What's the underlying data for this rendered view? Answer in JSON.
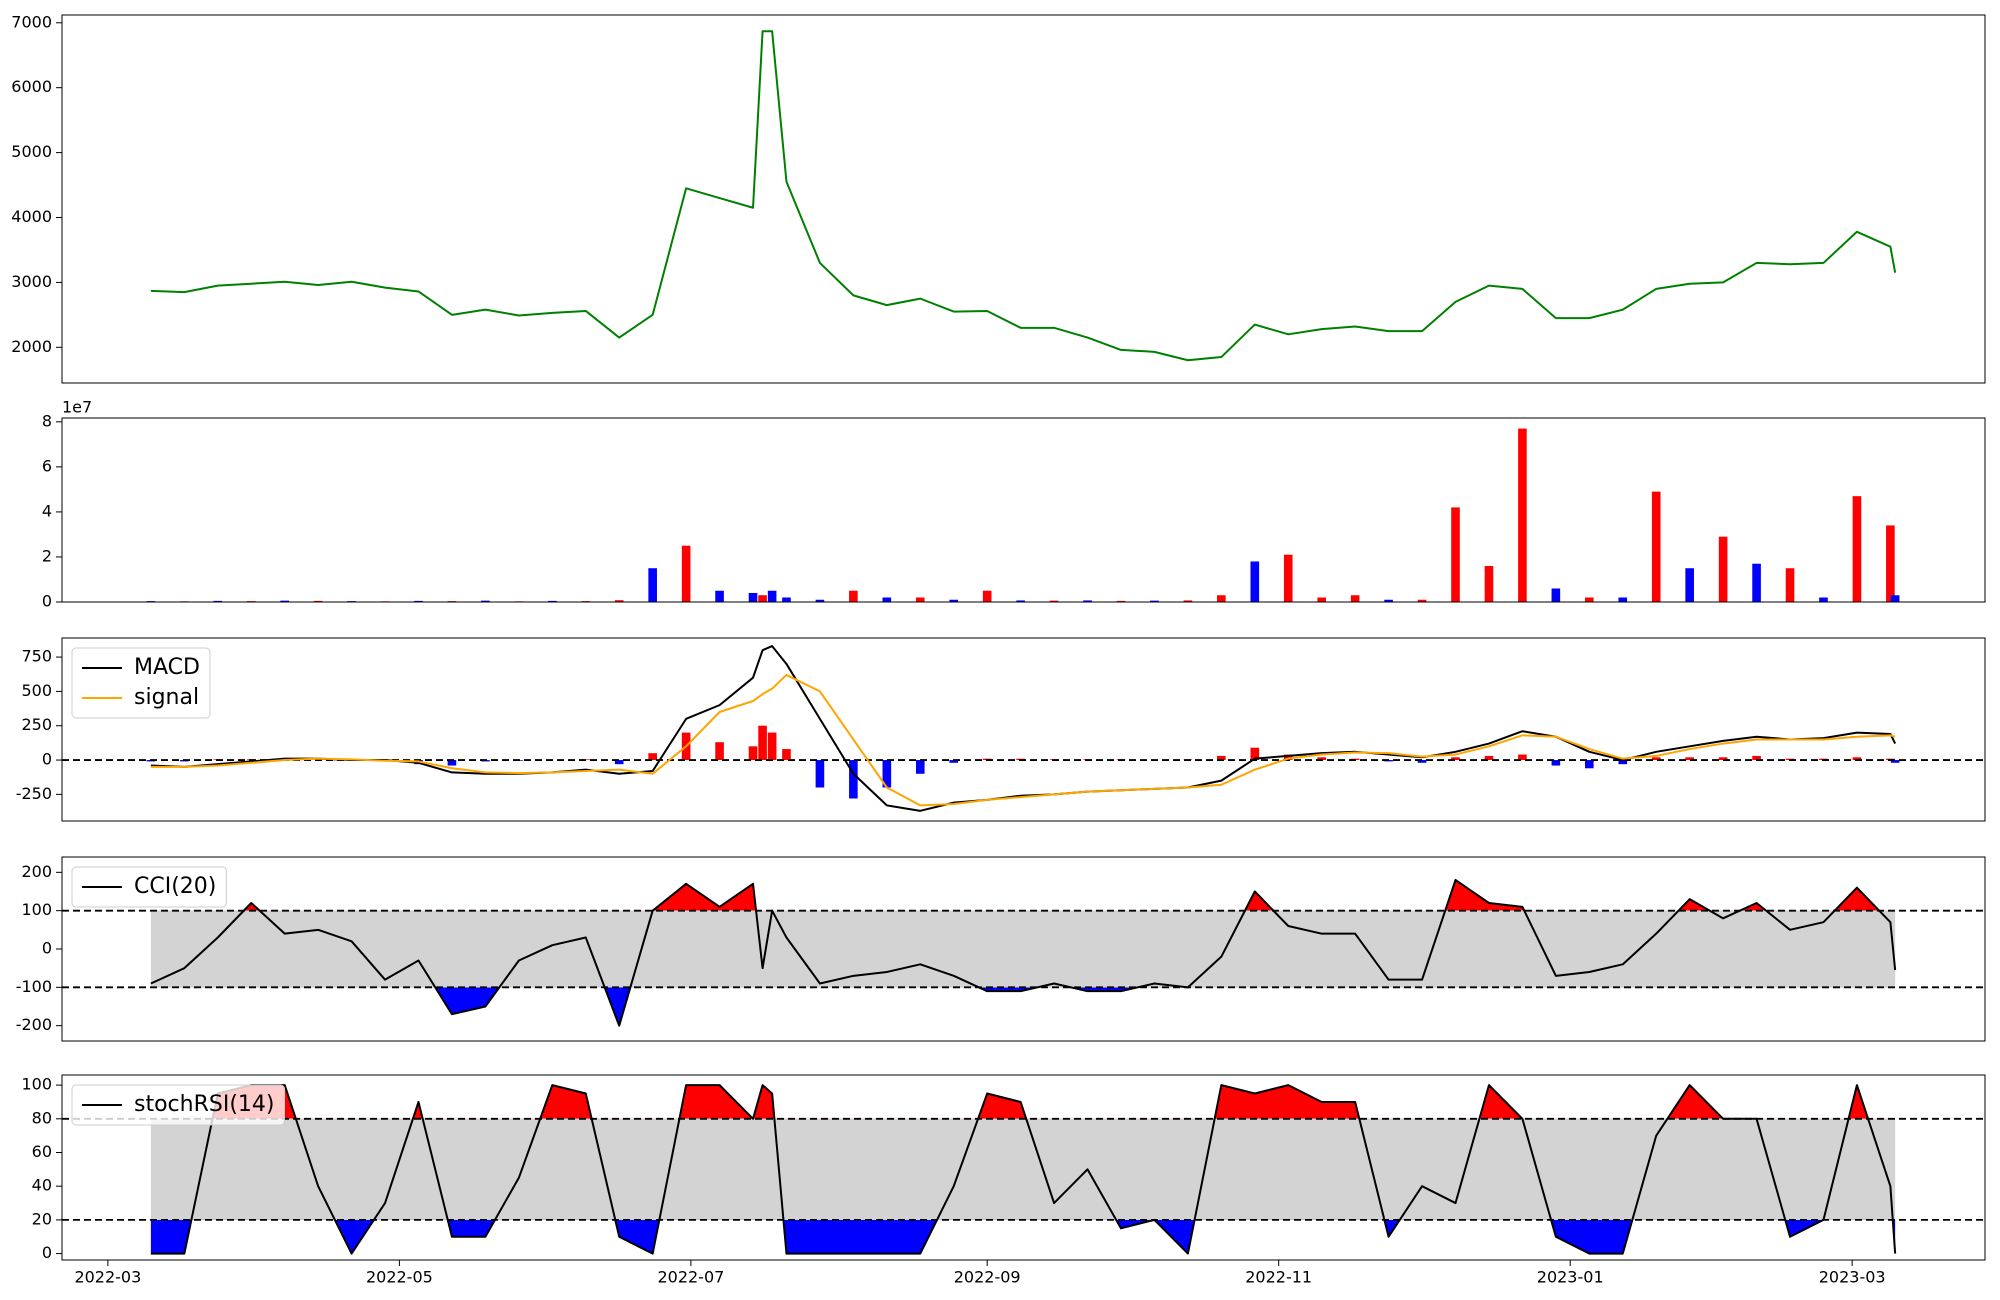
{
  "chart_data": [
    {
      "type": "line",
      "color": "green",
      "x": [
        9,
        16,
        23,
        30,
        37,
        44,
        51,
        58,
        65,
        72,
        79,
        86,
        93,
        100,
        107,
        114,
        121,
        128,
        135,
        137,
        139,
        142,
        149,
        156,
        163,
        170,
        177,
        184,
        191,
        198,
        205,
        212,
        219,
        226,
        233,
        240,
        247,
        254,
        261,
        268,
        275,
        282,
        289,
        296,
        303,
        310,
        317,
        324,
        331,
        338,
        345,
        352,
        359,
        366,
        373,
        374
      ],
      "values": [
        2870,
        2850,
        2950,
        2980,
        3010,
        2960,
        3010,
        2920,
        2860,
        2500,
        2580,
        2490,
        2530,
        2560,
        2150,
        2500,
        4450,
        4300,
        4150,
        6870,
        6870,
        4550,
        3300,
        2800,
        2650,
        2750,
        2550,
        2560,
        2300,
        2300,
        2150,
        1960,
        1930,
        1800,
        1850,
        2350,
        2200,
        2280,
        2320,
        2250,
        2250,
        2700,
        2950,
        2900,
        2450,
        2450,
        2580,
        2900,
        2980,
        3000,
        3300,
        3280,
        3300,
        3780,
        3550,
        3150
      ],
      "xlim": [
        -9.6,
        392.8
      ],
      "ylim": [
        1450,
        7120
      ],
      "yticks": [
        2000,
        3000,
        4000,
        5000,
        6000,
        7000
      ]
    },
    {
      "type": "bar",
      "y_offset_label": "1e7",
      "x": [
        9,
        16,
        23,
        30,
        37,
        44,
        51,
        58,
        65,
        72,
        79,
        86,
        93,
        100,
        107,
        114,
        121,
        128,
        135,
        137,
        139,
        142,
        149,
        156,
        163,
        170,
        177,
        184,
        191,
        198,
        205,
        212,
        219,
        226,
        233,
        240,
        247,
        254,
        261,
        268,
        275,
        282,
        289,
        296,
        303,
        310,
        317,
        324,
        331,
        338,
        345,
        352,
        359,
        366,
        373,
        374
      ],
      "values": [
        400000,
        300000,
        500000,
        400000,
        600000,
        500000,
        400000,
        300000,
        500000,
        400000,
        600000,
        300000,
        500000,
        400000,
        800000,
        15000000,
        25000000,
        5000000,
        4000000,
        3000000,
        5000000,
        2000000,
        1000000,
        5000000,
        2000000,
        2000000,
        1000000,
        5000000,
        700000,
        600000,
        700000,
        500000,
        600000,
        700000,
        3000000,
        18000000,
        21000000,
        2000000,
        3000000,
        1000000,
        1000000,
        42000000,
        16000000,
        77000000,
        6000000,
        2000000,
        2000000,
        49000000,
        15000000,
        29000000,
        17000000,
        15000000,
        2000000,
        47000000,
        34000000,
        3000000
      ],
      "colors": [
        "blue",
        "red",
        "blue",
        "red",
        "blue",
        "red",
        "blue",
        "red",
        "blue",
        "red",
        "blue",
        "red",
        "blue",
        "red",
        "red",
        "blue",
        "red",
        "blue",
        "blue",
        "red",
        "blue",
        "blue",
        "blue",
        "red",
        "blue",
        "red",
        "blue",
        "red",
        "blue",
        "red",
        "blue",
        "red",
        "blue",
        "red",
        "red",
        "blue",
        "red",
        "red",
        "red",
        "blue",
        "red",
        "red",
        "red",
        "red",
        "blue",
        "red",
        "blue",
        "red",
        "blue",
        "red",
        "blue",
        "red",
        "blue",
        "red",
        "red",
        "blue"
      ],
      "xlim": [
        -9.6,
        392.8
      ],
      "ylim": [
        0,
        81700000
      ],
      "yticks": [
        0,
        {
          "value": 20000000,
          "label": "2"
        },
        {
          "value": 40000000,
          "label": "4"
        },
        {
          "value": 60000000,
          "label": "6"
        },
        {
          "value": 80000000,
          "label": "8"
        }
      ]
    },
    {
      "type": "macd",
      "legend": "upper left",
      "hlines": [
        0
      ],
      "x": [
        9,
        16,
        23,
        30,
        37,
        44,
        51,
        58,
        65,
        72,
        79,
        86,
        93,
        100,
        107,
        114,
        121,
        128,
        135,
        137,
        139,
        142,
        149,
        156,
        163,
        170,
        177,
        184,
        191,
        198,
        205,
        212,
        219,
        226,
        233,
        240,
        247,
        254,
        261,
        268,
        275,
        282,
        289,
        296,
        303,
        310,
        317,
        324,
        331,
        338,
        345,
        352,
        359,
        366,
        373,
        374
      ],
      "series": [
        {
          "name": "MACD",
          "color": "black",
          "values": [
            -40,
            -50,
            -30,
            -10,
            10,
            10,
            0,
            0,
            -20,
            -90,
            -100,
            -100,
            -90,
            -70,
            -100,
            -80,
            300,
            400,
            600,
            800,
            830,
            700,
            300,
            -100,
            -330,
            -370,
            -310,
            -290,
            -260,
            -250,
            -230,
            -220,
            -210,
            -200,
            -150,
            10,
            30,
            50,
            60,
            40,
            20,
            60,
            120,
            210,
            170,
            60,
            0,
            60,
            100,
            140,
            170,
            150,
            160,
            200,
            190,
            120
          ]
        },
        {
          "name": "signal",
          "color": "orange",
          "values": [
            -50,
            -50,
            -40,
            -20,
            0,
            10,
            5,
            -5,
            -10,
            -60,
            -90,
            -95,
            -90,
            -80,
            -70,
            -100,
            100,
            350,
            430,
            480,
            520,
            620,
            500,
            150,
            -200,
            -330,
            -320,
            -290,
            -270,
            -250,
            -230,
            -220,
            -210,
            -200,
            -180,
            -70,
            10,
            40,
            55,
            50,
            25,
            40,
            100,
            180,
            170,
            80,
            10,
            30,
            80,
            120,
            150,
            150,
            150,
            170,
            180,
            170
          ]
        }
      ],
      "histogram": {
        "up_color": "red",
        "down_color": "blue",
        "values": [
          -10,
          -10,
          5,
          5,
          5,
          0,
          -5,
          5,
          -30,
          -40,
          -10,
          -5,
          0,
          5,
          -30,
          50,
          200,
          130,
          100,
          250,
          200,
          80,
          -200,
          -280,
          -200,
          -100,
          -20,
          10,
          10,
          5,
          5,
          5,
          0,
          5,
          30,
          90,
          40,
          20,
          10,
          -10,
          -20,
          20,
          30,
          40,
          -40,
          -60,
          -30,
          20,
          20,
          20,
          30,
          10,
          10,
          20,
          10,
          -20
        ]
      },
      "xlim": [
        -9.6,
        392.8
      ],
      "ylim": [
        -444,
        889
      ],
      "yticks": [
        -250,
        0,
        250,
        500,
        750
      ]
    },
    {
      "type": "band",
      "legend": "upper left",
      "band": [
        -100,
        100
      ],
      "band_color": "lightgray",
      "above_color": "red",
      "below_color": "blue",
      "x": [
        9,
        16,
        23,
        30,
        37,
        44,
        51,
        58,
        65,
        72,
        79,
        86,
        93,
        100,
        107,
        114,
        121,
        128,
        135,
        137,
        139,
        142,
        149,
        156,
        163,
        170,
        177,
        184,
        191,
        198,
        205,
        212,
        219,
        226,
        233,
        240,
        247,
        254,
        261,
        268,
        275,
        282,
        289,
        296,
        303,
        310,
        317,
        324,
        331,
        338,
        345,
        352,
        359,
        366,
        373,
        374
      ],
      "series": [
        {
          "name": "CCI(20)",
          "color": "black",
          "values": [
            -90,
            -50,
            30,
            120,
            40,
            50,
            20,
            -80,
            -30,
            -170,
            -150,
            -30,
            10,
            30,
            -200,
            100,
            170,
            110,
            170,
            -50,
            100,
            30,
            -90,
            -70,
            -60,
            -40,
            -70,
            -110,
            -110,
            -90,
            -110,
            -110,
            -90,
            -100,
            -20,
            150,
            60,
            40,
            40,
            -80,
            -80,
            180,
            120,
            110,
            -70,
            -60,
            -40,
            40,
            130,
            80,
            120,
            50,
            70,
            160,
            70,
            -55
          ]
        }
      ],
      "xlim": [
        -9.6,
        392.8
      ],
      "ylim": [
        -240,
        240
      ],
      "yticks": [
        -200,
        -100,
        0,
        100,
        200
      ]
    },
    {
      "type": "band",
      "legend": "upper left",
      "band": [
        20,
        80
      ],
      "band_color": "lightgray",
      "above_color": "red",
      "below_color": "blue",
      "x": [
        9,
        16,
        23,
        30,
        37,
        44,
        51,
        58,
        65,
        72,
        79,
        86,
        93,
        100,
        107,
        114,
        121,
        128,
        135,
        137,
        139,
        142,
        149,
        156,
        163,
        170,
        177,
        184,
        191,
        198,
        205,
        212,
        219,
        226,
        233,
        240,
        247,
        254,
        261,
        268,
        275,
        282,
        289,
        296,
        303,
        310,
        317,
        324,
        331,
        338,
        345,
        352,
        359,
        366,
        373,
        374
      ],
      "series": [
        {
          "name": "stochRSI(14)",
          "color": "black",
          "values": [
            0,
            0,
            95,
            100,
            100,
            40,
            0,
            30,
            90,
            10,
            10,
            45,
            100,
            95,
            10,
            0,
            100,
            100,
            80,
            100,
            95,
            0,
            0,
            0,
            0,
            0,
            40,
            95,
            90,
            30,
            50,
            15,
            20,
            0,
            100,
            95,
            100,
            90,
            90,
            10,
            40,
            30,
            100,
            80,
            10,
            0,
            0,
            70,
            100,
            80,
            80,
            10,
            20,
            100,
            40,
            0
          ]
        }
      ],
      "xlim": [
        -9.6,
        392.8
      ],
      "ylim": [
        -3.8,
        106
      ],
      "yticks": [
        0,
        20,
        40,
        60,
        80,
        100
      ],
      "xticks": [
        {
          "value": 0,
          "label": "2022-03"
        },
        {
          "value": 61,
          "label": "2022-05"
        },
        {
          "value": 122,
          "label": "2022-07"
        },
        {
          "value": 184,
          "label": "2022-09"
        },
        {
          "value": 245,
          "label": "2022-11"
        },
        {
          "value": 306,
          "label": "2023-01"
        },
        {
          "value": 365,
          "label": "2023-03"
        }
      ]
    }
  ]
}
